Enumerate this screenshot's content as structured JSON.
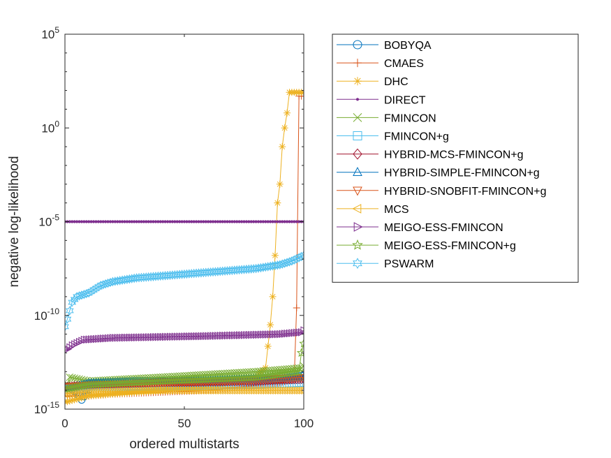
{
  "chart_data": {
    "type": "line",
    "xlabel": "ordered multistarts",
    "ylabel": "negative log-likelihood",
    "xlim": [
      0,
      100
    ],
    "ylim": [
      1e-15,
      100000.0
    ],
    "yscale": "log",
    "x_ticks": [
      "0",
      "50",
      "100"
    ],
    "y_ticks": [
      {
        "base": "10",
        "exp": "-15"
      },
      {
        "base": "10",
        "exp": "-10"
      },
      {
        "base": "10",
        "exp": "-5"
      },
      {
        "base": "10",
        "exp": "0"
      },
      {
        "base": "10",
        "exp": "5"
      }
    ],
    "grid": false,
    "legend_position": "outside-right",
    "series": [
      {
        "name": "BOBYQA",
        "color": "#0072BD",
        "marker": "circle",
        "points": [
          [
            1,
            -13.8
          ],
          [
            5,
            -14.1
          ],
          [
            7,
            -14.5
          ],
          [
            12,
            -13.6
          ],
          [
            30,
            -13.5
          ],
          [
            60,
            -13.5
          ],
          [
            90,
            -13.4
          ],
          [
            100,
            -13.2
          ]
        ]
      },
      {
        "name": "CMAES",
        "color": "#D95319",
        "marker": "plus",
        "points": [
          [
            1,
            -14.3
          ],
          [
            10,
            -14.3
          ],
          [
            20,
            -14.2
          ],
          [
            60,
            -14.0
          ],
          [
            90,
            -13.6
          ],
          [
            96,
            -13.4
          ],
          [
            97,
            -9.6
          ],
          [
            98,
            1.7
          ],
          [
            100,
            1.7
          ]
        ]
      },
      {
        "name": "DHC",
        "color": "#EDB120",
        "marker": "asterisk",
        "points": [
          [
            1,
            -14.6
          ],
          [
            10,
            -14.3
          ],
          [
            40,
            -14.0
          ],
          [
            78,
            -13.5
          ],
          [
            84,
            -12.8
          ],
          [
            86,
            -10.5
          ],
          [
            87,
            -9.0
          ],
          [
            88,
            -6.8
          ],
          [
            89,
            -4.0
          ],
          [
            90,
            -3.0
          ],
          [
            91,
            -1.0
          ],
          [
            92,
            0.0
          ],
          [
            93,
            0.8
          ],
          [
            94,
            1.9
          ],
          [
            100,
            1.9
          ]
        ]
      },
      {
        "name": "DIRECT",
        "color": "#7E2F8E",
        "marker": "dot",
        "points": [
          [
            0,
            -5.0
          ],
          [
            100,
            -5.0
          ]
        ]
      },
      {
        "name": "FMINCON",
        "color": "#77AC30",
        "marker": "x",
        "points": [
          [
            0,
            -14.0
          ],
          [
            2,
            -13.3
          ],
          [
            10,
            -13.5
          ],
          [
            40,
            -13.3
          ],
          [
            80,
            -13.0
          ],
          [
            99,
            -12.8
          ],
          [
            100,
            -12.7
          ]
        ]
      },
      {
        "name": "FMINCON+g",
        "color": "#4DBEEE",
        "marker": "square",
        "points": [
          [
            1,
            -13.9
          ],
          [
            10,
            -13.8
          ],
          [
            40,
            -13.8
          ],
          [
            80,
            -13.7
          ],
          [
            100,
            -13.6
          ]
        ]
      },
      {
        "name": "HYBRID-MCS-FMINCON+g",
        "color": "#A2142F",
        "marker": "diamond",
        "points": [
          [
            1,
            -13.8
          ],
          [
            10,
            -13.7
          ],
          [
            40,
            -13.6
          ],
          [
            80,
            -13.5
          ],
          [
            100,
            -13.4
          ]
        ]
      },
      {
        "name": "HYBRID-SIMPLE-FMINCON+g",
        "color": "#0072BD",
        "marker": "triangle-up",
        "points": [
          [
            1,
            -13.9
          ],
          [
            10,
            -13.6
          ],
          [
            40,
            -13.5
          ],
          [
            80,
            -13.4
          ],
          [
            100,
            -13.3
          ]
        ]
      },
      {
        "name": "HYBRID-SNOBFIT-FMINCON+g",
        "color": "#D95319",
        "marker": "triangle-down",
        "points": [
          [
            1,
            -13.8
          ],
          [
            10,
            -13.7
          ],
          [
            40,
            -13.6
          ],
          [
            80,
            -13.4
          ],
          [
            100,
            -13.3
          ]
        ]
      },
      {
        "name": "MCS",
        "color": "#EDB120",
        "marker": "triangle-left",
        "points": [
          [
            1,
            -14.2
          ],
          [
            10,
            -14.1
          ],
          [
            40,
            -14.0
          ],
          [
            80,
            -14.0
          ],
          [
            100,
            -14.0
          ]
        ]
      },
      {
        "name": "MEIGO-ESS-FMINCON",
        "color": "#7E2F8E",
        "marker": "triangle-right",
        "points": [
          [
            1,
            -11.8
          ],
          [
            3,
            -11.6
          ],
          [
            8,
            -11.3
          ],
          [
            20,
            -11.2
          ],
          [
            60,
            -11.1
          ],
          [
            90,
            -11.0
          ],
          [
            99,
            -10.9
          ],
          [
            100,
            -10.8
          ]
        ]
      },
      {
        "name": "MEIGO-ESS-FMINCON+g",
        "color": "#77AC30",
        "marker": "star",
        "points": [
          [
            1,
            -13.9
          ],
          [
            10,
            -13.7
          ],
          [
            40,
            -13.5
          ],
          [
            80,
            -13.3
          ],
          [
            98,
            -13.0
          ],
          [
            99,
            -12.0
          ],
          [
            100,
            -11.5
          ]
        ]
      },
      {
        "name": "PSWARM",
        "color": "#4DBEEE",
        "marker": "hexagram",
        "points": [
          [
            0,
            -10.6
          ],
          [
            1,
            -10.2
          ],
          [
            3,
            -9.3
          ],
          [
            5,
            -9.0
          ],
          [
            10,
            -8.8
          ],
          [
            15,
            -8.4
          ],
          [
            20,
            -8.2
          ],
          [
            30,
            -8.0
          ],
          [
            40,
            -7.9
          ],
          [
            50,
            -7.8
          ],
          [
            60,
            -7.7
          ],
          [
            70,
            -7.6
          ],
          [
            80,
            -7.5
          ],
          [
            90,
            -7.3
          ],
          [
            95,
            -7.1
          ],
          [
            100,
            -6.8
          ]
        ]
      }
    ]
  }
}
